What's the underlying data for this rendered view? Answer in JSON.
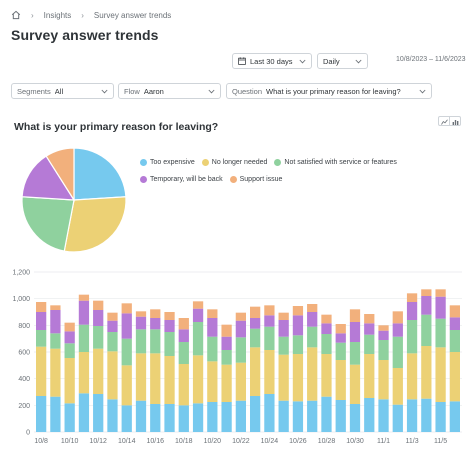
{
  "breadcrumb": {
    "items": [
      "Insights",
      "Survey answer trends"
    ]
  },
  "page": {
    "title": "Survey answer trends"
  },
  "filters": {
    "date_range": "Last 30 days",
    "interval": "Daily",
    "range_text": "10/8/2023 – 11/6/2023",
    "segments_label": "Segments",
    "segments_value": "All",
    "flow_label": "Flow",
    "flow_value": "Aaron",
    "question_label": "Question",
    "question_value": "What is your primary reason for leaving?"
  },
  "card": {
    "title": "What is your primary reason for leaving?"
  },
  "colors": {
    "too_expensive": "#76c9ee",
    "no_longer_needed": "#ecd175",
    "not_satisfied": "#8fd19e",
    "temporary": "#b57ad6",
    "support_issue": "#f2b07c"
  },
  "legend": [
    {
      "label": "Too expensive",
      "color": "#76c9ee"
    },
    {
      "label": "No longer needed",
      "color": "#ecd175"
    },
    {
      "label": "Not satisfied with service or features",
      "color": "#8fd19e"
    },
    {
      "label": "Temporary, will be back",
      "color": "#b57ad6"
    },
    {
      "label": "Support issue",
      "color": "#f2b07c"
    }
  ],
  "chart_data": [
    {
      "type": "pie",
      "labels": [
        "Too expensive",
        "No longer needed",
        "Not satisfied with service or features",
        "Temporary, will be back",
        "Support issue"
      ],
      "values": [
        24,
        29,
        23,
        15,
        9
      ],
      "colors": [
        "#76c9ee",
        "#ecd175",
        "#8fd19e",
        "#b57ad6",
        "#f2b07c"
      ]
    },
    {
      "type": "bar",
      "stacked": true,
      "ylim": [
        0,
        1200
      ],
      "yticks": [
        0,
        200,
        400,
        600,
        800,
        1000,
        1200
      ],
      "ytick_labels": [
        "0",
        "200",
        "400",
        "600",
        "800",
        "1,000",
        "1,200"
      ],
      "grid": true,
      "categories": [
        "10/8",
        "10/9",
        "10/10",
        "10/11",
        "10/12",
        "10/13",
        "10/14",
        "10/15",
        "10/16",
        "10/17",
        "10/18",
        "10/19",
        "10/20",
        "10/21",
        "10/22",
        "10/23",
        "10/24",
        "10/25",
        "10/26",
        "10/27",
        "10/28",
        "10/29",
        "10/30",
        "10/31",
        "11/1",
        "11/2",
        "11/3",
        "11/4",
        "11/5",
        "11/6"
      ],
      "xtick_labels": [
        "10/8",
        "10/10",
        "10/12",
        "10/14",
        "10/16",
        "10/18",
        "10/20",
        "10/22",
        "10/24",
        "10/26",
        "10/28",
        "10/30",
        "11/1",
        "11/3",
        "11/5"
      ],
      "series": [
        {
          "name": "Too expensive",
          "color": "#76c9ee",
          "values": [
            270,
            265,
            215,
            290,
            285,
            245,
            200,
            235,
            210,
            210,
            200,
            215,
            225,
            225,
            235,
            270,
            285,
            235,
            230,
            235,
            265,
            240,
            210,
            255,
            245,
            205,
            245,
            250,
            225,
            230
          ]
        },
        {
          "name": "No longer needed",
          "color": "#ecd175",
          "values": [
            370,
            360,
            340,
            310,
            340,
            360,
            300,
            355,
            380,
            360,
            310,
            360,
            305,
            280,
            285,
            365,
            330,
            345,
            355,
            400,
            320,
            300,
            295,
            330,
            295,
            275,
            345,
            395,
            410,
            370
          ]
        },
        {
          "name": "Not satisfied with service or features",
          "color": "#8fd19e",
          "values": [
            125,
            115,
            110,
            205,
            170,
            145,
            200,
            180,
            180,
            180,
            165,
            250,
            185,
            110,
            190,
            140,
            175,
            135,
            140,
            155,
            150,
            130,
            170,
            145,
            150,
            235,
            250,
            235,
            215,
            165
          ]
        },
        {
          "name": "Temporary, will be back",
          "color": "#b57ad6",
          "values": [
            135,
            175,
            90,
            180,
            120,
            85,
            190,
            95,
            85,
            90,
            95,
            100,
            140,
            100,
            125,
            80,
            85,
            125,
            150,
            110,
            80,
            70,
            150,
            85,
            70,
            100,
            135,
            140,
            165,
            95
          ]
        },
        {
          "name": "Support issue",
          "color": "#f2b07c",
          "values": [
            75,
            35,
            65,
            45,
            70,
            60,
            75,
            40,
            65,
            60,
            85,
            55,
            65,
            90,
            60,
            85,
            75,
            55,
            70,
            60,
            65,
            70,
            95,
            70,
            40,
            90,
            65,
            50,
            55,
            90
          ]
        }
      ]
    }
  ]
}
